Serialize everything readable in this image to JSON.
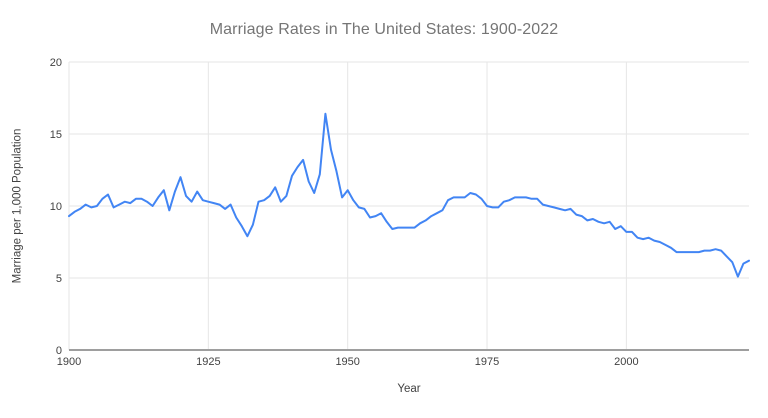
{
  "colors": {
    "line": "#4285f4",
    "grid": "#e6e6e6",
    "axis_baseline": "#9e9e9e",
    "tick_text": "#424242",
    "title_text": "#757575",
    "background": "#ffffff"
  },
  "chart_data": {
    "type": "line",
    "title": "Marriage Rates in The United States: 1900-2022",
    "xlabel": "Year",
    "ylabel": "Marriage per 1,000 Population",
    "xlim": [
      1900,
      2022
    ],
    "ylim": [
      0,
      20
    ],
    "x_ticks": [
      1900,
      1925,
      1950,
      1975,
      2000
    ],
    "y_ticks": [
      0,
      5,
      10,
      15,
      20
    ],
    "grid": true,
    "legend_position": "none",
    "x": [
      1900,
      1901,
      1902,
      1903,
      1904,
      1905,
      1906,
      1907,
      1908,
      1909,
      1910,
      1911,
      1912,
      1913,
      1914,
      1915,
      1916,
      1917,
      1918,
      1919,
      1920,
      1921,
      1922,
      1923,
      1924,
      1925,
      1926,
      1927,
      1928,
      1929,
      1930,
      1931,
      1932,
      1933,
      1934,
      1935,
      1936,
      1937,
      1938,
      1939,
      1940,
      1941,
      1942,
      1943,
      1944,
      1945,
      1946,
      1947,
      1948,
      1949,
      1950,
      1951,
      1952,
      1953,
      1954,
      1955,
      1956,
      1957,
      1958,
      1959,
      1960,
      1961,
      1962,
      1963,
      1964,
      1965,
      1966,
      1967,
      1968,
      1969,
      1970,
      1971,
      1972,
      1973,
      1974,
      1975,
      1976,
      1977,
      1978,
      1979,
      1980,
      1981,
      1982,
      1983,
      1984,
      1985,
      1986,
      1987,
      1988,
      1989,
      1990,
      1991,
      1992,
      1993,
      1994,
      1995,
      1996,
      1997,
      1998,
      1999,
      2000,
      2001,
      2002,
      2003,
      2004,
      2005,
      2006,
      2007,
      2008,
      2009,
      2010,
      2011,
      2012,
      2013,
      2014,
      2015,
      2016,
      2017,
      2018,
      2019,
      2020,
      2021,
      2022
    ],
    "values": [
      9.3,
      9.6,
      9.8,
      10.1,
      9.9,
      10.0,
      10.5,
      10.8,
      9.9,
      10.1,
      10.3,
      10.2,
      10.5,
      10.5,
      10.3,
      10.0,
      10.6,
      11.1,
      9.7,
      11.0,
      12.0,
      10.7,
      10.3,
      11.0,
      10.4,
      10.3,
      10.2,
      10.1,
      9.8,
      10.1,
      9.2,
      8.6,
      7.9,
      8.7,
      10.3,
      10.4,
      10.7,
      11.3,
      10.3,
      10.7,
      12.1,
      12.7,
      13.2,
      11.7,
      10.9,
      12.2,
      16.4,
      13.9,
      12.4,
      10.6,
      11.1,
      10.4,
      9.9,
      9.8,
      9.2,
      9.3,
      9.5,
      8.9,
      8.4,
      8.5,
      8.5,
      8.5,
      8.5,
      8.8,
      9.0,
      9.3,
      9.5,
      9.7,
      10.4,
      10.6,
      10.6,
      10.6,
      10.9,
      10.8,
      10.5,
      10.0,
      9.9,
      9.9,
      10.3,
      10.4,
      10.6,
      10.6,
      10.6,
      10.5,
      10.5,
      10.1,
      10.0,
      9.9,
      9.8,
      9.7,
      9.8,
      9.4,
      9.3,
      9.0,
      9.1,
      8.9,
      8.8,
      8.9,
      8.4,
      8.6,
      8.2,
      8.2,
      7.8,
      7.7,
      7.8,
      7.6,
      7.5,
      7.3,
      7.1,
      6.8,
      6.8,
      6.8,
      6.8,
      6.8,
      6.9,
      6.9,
      7.0,
      6.9,
      6.5,
      6.1,
      5.1,
      6.0,
      6.2
    ]
  }
}
